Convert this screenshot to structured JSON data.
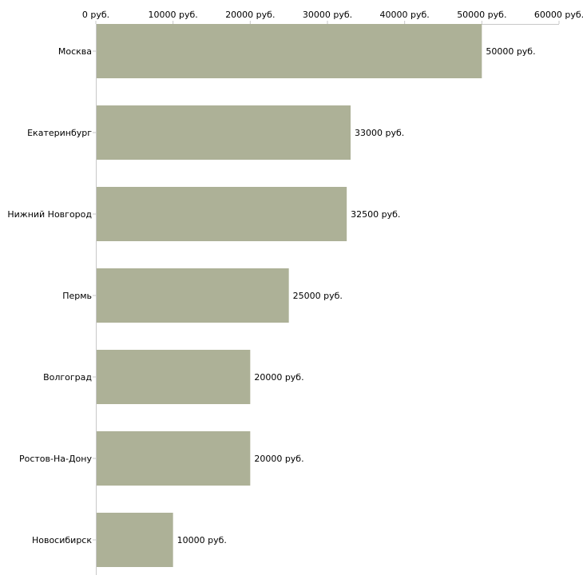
{
  "chart_data": {
    "type": "bar",
    "orientation": "horizontal",
    "title": "",
    "xlabel": "",
    "ylabel": "",
    "unit_suffix": " руб.",
    "xlim": [
      0,
      60000
    ],
    "ticks": [
      0,
      10000,
      20000,
      30000,
      40000,
      50000,
      60000
    ],
    "tick_labels": [
      "0 руб.",
      "10000 руб.",
      "20000 руб.",
      "30000 руб.",
      "40000 руб.",
      "50000 руб.",
      "60000 руб."
    ],
    "axis_position": "top",
    "grid": false,
    "categories": [
      "Москва",
      "Екатеринбург",
      "Нижний Новгород",
      "Пермь",
      "Волгоград",
      "Ростов-На-Дону",
      "Новосибирск"
    ],
    "values": [
      50000,
      33000,
      32500,
      25000,
      20000,
      20000,
      10000
    ],
    "value_labels": [
      "50000 руб.",
      "33000 руб.",
      "32500 руб.",
      "25000 руб.",
      "20000 руб.",
      "20000 руб.",
      "10000 руб."
    ],
    "bar_color": "#adb197",
    "axis_color": "#c8c8c8"
  }
}
